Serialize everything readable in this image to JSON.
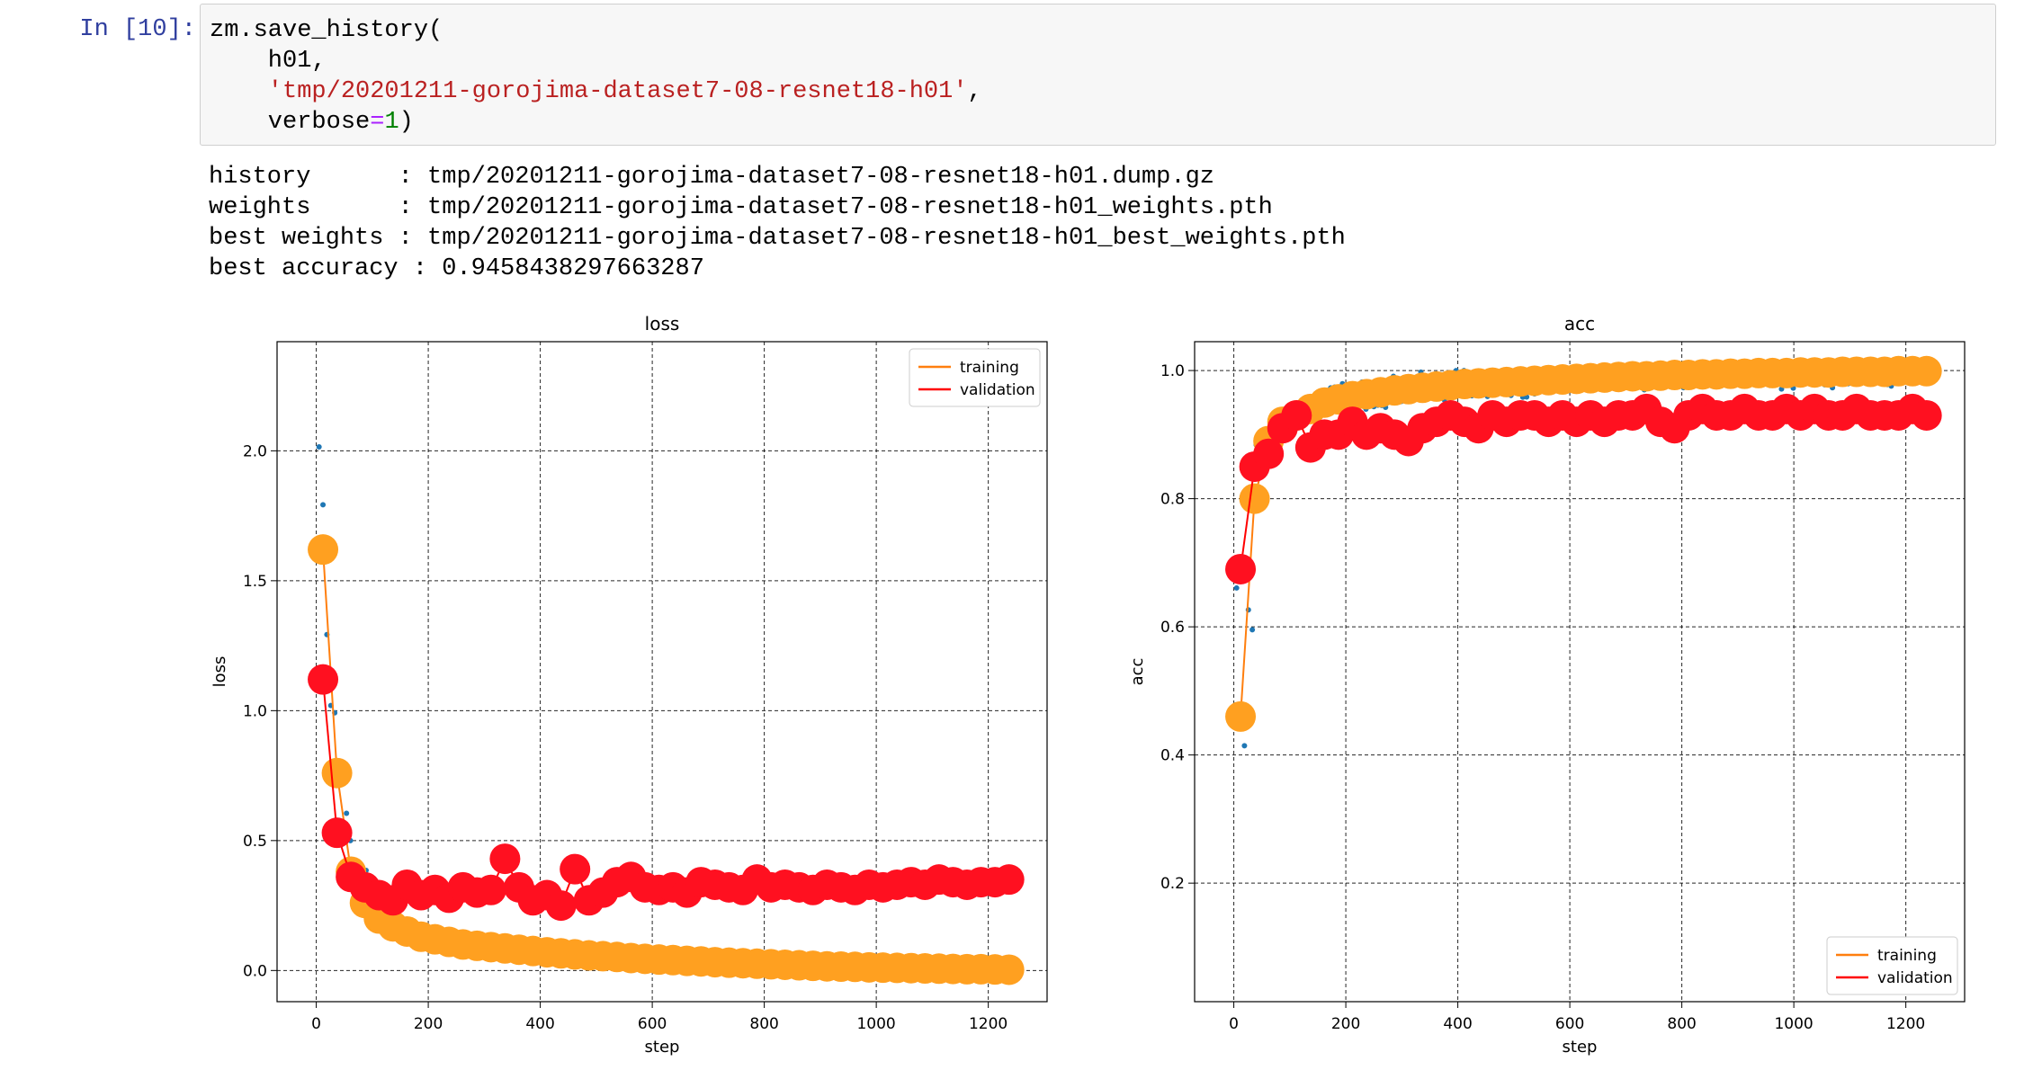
{
  "cell": {
    "prompt": "In [10]:",
    "code_lines": [
      {
        "plain": "zm.save_history("
      },
      {
        "plain": "    h01,"
      },
      {
        "string": "    'tmp/20201211-gorojima-dataset7-08-resnet18-h01'",
        "after": ","
      },
      {
        "plain": "    verbose",
        "op": "=",
        "num": "1",
        "after": ")"
      }
    ]
  },
  "output": {
    "lines": [
      {
        "key": "history      ",
        "value": ": tmp/20201211-gorojima-dataset7-08-resnet18-h01.dump.gz"
      },
      {
        "key": "weights      ",
        "value": ": tmp/20201211-gorojima-dataset7-08-resnet18-h01_weights.pth"
      },
      {
        "key": "best weights ",
        "value": ": tmp/20201211-gorojima-dataset7-08-resnet18-h01_best_weights.pth"
      },
      {
        "key": "best accuracy",
        "value": " : 0.9458438297663287"
      }
    ]
  },
  "colors": {
    "training": "#ff7f0e",
    "training_marker": "#ffa020",
    "validation": "#ff0000",
    "validation_marker": "#ff1020",
    "scatter": "#1f77b4"
  },
  "chart_data": [
    {
      "type": "line",
      "title": "loss",
      "xlabel": "step",
      "ylabel": "loss",
      "xlim": [
        -70,
        1305
      ],
      "ylim": [
        -0.12,
        2.42
      ],
      "xticks": [
        0,
        200,
        400,
        600,
        800,
        1000,
        1200
      ],
      "yticks": [
        0.0,
        0.5,
        1.0,
        1.5,
        2.0
      ],
      "ytick_labels": [
        "0.0",
        "0.5",
        "1.0",
        "1.5",
        "2.0"
      ],
      "grid": true,
      "legend_position": "top-right",
      "series": [
        {
          "name": "training",
          "x": [
            12,
            37,
            62,
            87,
            112,
            137,
            162,
            187,
            212,
            237,
            262,
            287,
            312,
            337,
            362,
            387,
            412,
            437,
            462,
            487,
            512,
            537,
            562,
            587,
            612,
            637,
            662,
            687,
            712,
            737,
            762,
            787,
            812,
            837,
            862,
            887,
            912,
            937,
            962,
            987,
            1012,
            1037,
            1062,
            1087,
            1112,
            1137,
            1162,
            1187,
            1212,
            1237
          ],
          "values": [
            1.62,
            0.76,
            0.38,
            0.26,
            0.2,
            0.17,
            0.15,
            0.13,
            0.12,
            0.11,
            0.1,
            0.095,
            0.09,
            0.085,
            0.08,
            0.075,
            0.07,
            0.066,
            0.062,
            0.058,
            0.055,
            0.052,
            0.048,
            0.045,
            0.042,
            0.04,
            0.037,
            0.035,
            0.032,
            0.03,
            0.028,
            0.026,
            0.024,
            0.022,
            0.02,
            0.018,
            0.016,
            0.015,
            0.014,
            0.012,
            0.011,
            0.01,
            0.009,
            0.008,
            0.007,
            0.006,
            0.005,
            0.005,
            0.004,
            0.003
          ]
        },
        {
          "name": "validation",
          "x": [
            12,
            37,
            62,
            87,
            112,
            137,
            162,
            187,
            212,
            237,
            262,
            287,
            312,
            337,
            362,
            387,
            412,
            437,
            462,
            487,
            512,
            537,
            562,
            587,
            612,
            637,
            662,
            687,
            712,
            737,
            762,
            787,
            812,
            837,
            862,
            887,
            912,
            937,
            962,
            987,
            1012,
            1037,
            1062,
            1087,
            1112,
            1137,
            1162,
            1187,
            1212,
            1237
          ],
          "values": [
            1.12,
            0.53,
            0.36,
            0.32,
            0.29,
            0.27,
            0.33,
            0.29,
            0.31,
            0.28,
            0.32,
            0.3,
            0.31,
            0.43,
            0.32,
            0.27,
            0.29,
            0.25,
            0.39,
            0.27,
            0.3,
            0.34,
            0.36,
            0.32,
            0.31,
            0.32,
            0.3,
            0.34,
            0.33,
            0.32,
            0.31,
            0.35,
            0.32,
            0.33,
            0.32,
            0.31,
            0.33,
            0.32,
            0.31,
            0.33,
            0.32,
            0.33,
            0.34,
            0.33,
            0.35,
            0.34,
            0.33,
            0.34,
            0.34,
            0.35
          ]
        }
      ]
    },
    {
      "type": "line",
      "title": "acc",
      "xlabel": "step",
      "ylabel": "acc",
      "xlim": [
        -70,
        1305
      ],
      "ylim": [
        0.015,
        1.045
      ],
      "xticks": [
        0,
        200,
        400,
        600,
        800,
        1000,
        1200
      ],
      "yticks": [
        0.2,
        0.4,
        0.6,
        0.8,
        1.0
      ],
      "ytick_labels": [
        "0.2",
        "0.4",
        "0.6",
        "0.8",
        "1.0"
      ],
      "grid": true,
      "legend_position": "bottom-right",
      "series": [
        {
          "name": "training",
          "x": [
            12,
            37,
            62,
            87,
            112,
            137,
            162,
            187,
            212,
            237,
            262,
            287,
            312,
            337,
            362,
            387,
            412,
            437,
            462,
            487,
            512,
            537,
            562,
            587,
            612,
            637,
            662,
            687,
            712,
            737,
            762,
            787,
            812,
            837,
            862,
            887,
            912,
            937,
            962,
            987,
            1012,
            1037,
            1062,
            1087,
            1112,
            1137,
            1162,
            1187,
            1212,
            1237
          ],
          "values": [
            0.46,
            0.8,
            0.89,
            0.92,
            0.93,
            0.94,
            0.95,
            0.955,
            0.96,
            0.963,
            0.966,
            0.969,
            0.971,
            0.973,
            0.975,
            0.977,
            0.979,
            0.98,
            0.981,
            0.982,
            0.983,
            0.984,
            0.985,
            0.986,
            0.987,
            0.988,
            0.989,
            0.99,
            0.991,
            0.991,
            0.992,
            0.993,
            0.993,
            0.994,
            0.994,
            0.995,
            0.995,
            0.996,
            0.996,
            0.996,
            0.997,
            0.997,
            0.997,
            0.998,
            0.998,
            0.998,
            0.998,
            0.999,
            0.999,
            0.999
          ]
        },
        {
          "name": "validation",
          "x": [
            12,
            37,
            62,
            87,
            112,
            137,
            162,
            187,
            212,
            237,
            262,
            287,
            312,
            337,
            362,
            387,
            412,
            437,
            462,
            487,
            512,
            537,
            562,
            587,
            612,
            637,
            662,
            687,
            712,
            737,
            762,
            787,
            812,
            837,
            862,
            887,
            912,
            937,
            962,
            987,
            1012,
            1037,
            1062,
            1087,
            1112,
            1137,
            1162,
            1187,
            1212,
            1237
          ],
          "values": [
            0.69,
            0.85,
            0.87,
            0.91,
            0.93,
            0.88,
            0.9,
            0.9,
            0.92,
            0.9,
            0.91,
            0.9,
            0.89,
            0.91,
            0.92,
            0.93,
            0.92,
            0.91,
            0.93,
            0.92,
            0.93,
            0.93,
            0.92,
            0.93,
            0.92,
            0.93,
            0.92,
            0.93,
            0.93,
            0.94,
            0.92,
            0.91,
            0.93,
            0.94,
            0.93,
            0.93,
            0.94,
            0.93,
            0.93,
            0.94,
            0.93,
            0.94,
            0.93,
            0.93,
            0.94,
            0.93,
            0.93,
            0.93,
            0.94,
            0.93
          ]
        }
      ]
    }
  ]
}
